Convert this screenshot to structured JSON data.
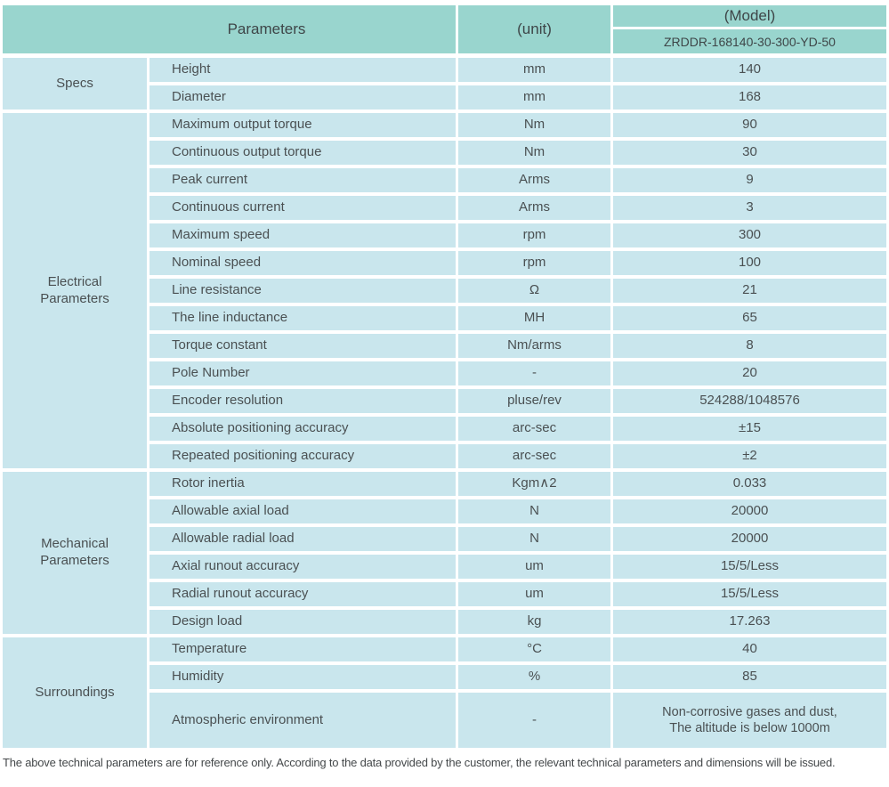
{
  "colors": {
    "header_bg": "#99d5ce",
    "row_bg": "#c9e6ed",
    "text": "#4a5052"
  },
  "table": {
    "header": {
      "parameters_label": "Parameters",
      "unit_label": "(unit)",
      "model_label": "(Model)",
      "model_value": "ZRDDR-168140-30-300-YD-50"
    },
    "sections": [
      {
        "category": "Specs",
        "rows": [
          {
            "name": "Height",
            "unit": "mm",
            "value": "140"
          },
          {
            "name": "Diameter",
            "unit": "mm",
            "value": "168"
          }
        ]
      },
      {
        "category": "Electrical\nParameters",
        "rows": [
          {
            "name": "Maximum output torque",
            "unit": "Nm",
            "value": "90"
          },
          {
            "name": "Continuous output torque",
            "unit": "Nm",
            "value": "30"
          },
          {
            "name": "Peak current",
            "unit": "Arms",
            "value": "9"
          },
          {
            "name": "Continuous current",
            "unit": "Arms",
            "value": "3"
          },
          {
            "name": "Maximum speed",
            "unit": "rpm",
            "value": "300"
          },
          {
            "name": "Nominal speed",
            "unit": "rpm",
            "value": "100"
          },
          {
            "name": "Line resistance",
            "unit": "Ω",
            "value": "21"
          },
          {
            "name": "The line inductance",
            "unit": "MH",
            "value": "65"
          },
          {
            "name": "Torque constant",
            "unit": "Nm/arms",
            "value": "8"
          },
          {
            "name": "Pole Number",
            "unit": "-",
            "value": "20"
          },
          {
            "name": "Encoder resolution",
            "unit": "pluse/rev",
            "value": "524288/1048576"
          },
          {
            "name": "Absolute positioning accuracy",
            "unit": "arc-sec",
            "value": "±15"
          },
          {
            "name": "Repeated positioning accuracy",
            "unit": "arc-sec",
            "value": "±2"
          }
        ]
      },
      {
        "category": "Mechanical\nParameters",
        "rows": [
          {
            "name": "Rotor inertia",
            "unit": "Kgm∧2",
            "value": "0.033"
          },
          {
            "name": "Allowable axial load",
            "unit": "N",
            "value": "20000"
          },
          {
            "name": "Allowable radial load",
            "unit": "N",
            "value": "20000"
          },
          {
            "name": "Axial runout accuracy",
            "unit": "um",
            "value": "15/5/Less"
          },
          {
            "name": "Radial runout accuracy",
            "unit": "um",
            "value": "15/5/Less"
          },
          {
            "name": "Design load",
            "unit": "kg",
            "value": "17.263"
          }
        ]
      },
      {
        "category": "Surroundings",
        "rows": [
          {
            "name": "Temperature",
            "unit": "°C",
            "value": "40"
          },
          {
            "name": "Humidity",
            "unit": "%",
            "value": "85"
          },
          {
            "name": "Atmospheric environment",
            "unit": "-",
            "value": "Non-corrosive gases and dust,\nThe altitude is below 1000m"
          }
        ]
      }
    ],
    "footnote": "The above technical parameters are for reference only. According to the data provided by the customer, the relevant technical parameters and dimensions will be issued."
  }
}
